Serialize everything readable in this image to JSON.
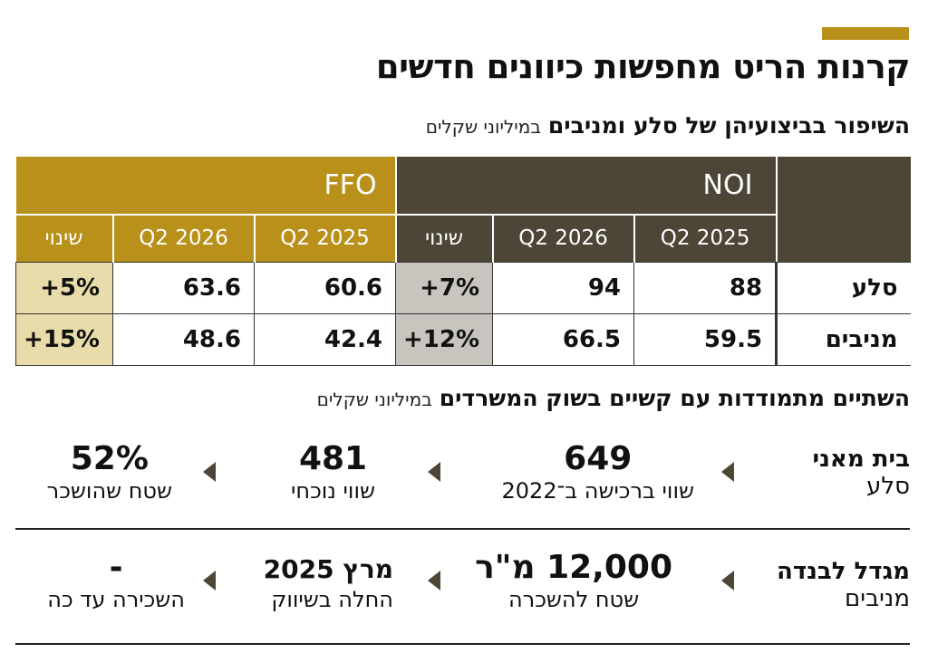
{
  "title": "קרנות הריט מחפשות כיוונים חדשים",
  "subtitle": {
    "bold": "השיפור בביצועיהן של סלע ומניבים",
    "unit": "במיליוני שקלים"
  },
  "table": {
    "groups": {
      "ffo": "FFO",
      "noi": "NOI"
    },
    "columns": {
      "q2_2025": "Q2 2025",
      "q2_2026": "Q2 2026",
      "change": "שינוי"
    },
    "rows": [
      {
        "label": "סלע",
        "noi_2025": "88",
        "noi_2026": "94",
        "noi_change": "+7%",
        "ffo_2025": "60.6",
        "ffo_2026": "63.6",
        "ffo_change": "+5%"
      },
      {
        "label": "מניבים",
        "noi_2025": "59.5",
        "noi_2026": "66.5",
        "noi_change": "+12%",
        "ffo_2025": "42.4",
        "ffo_2026": "48.6",
        "ffo_change": "+15%"
      }
    ]
  },
  "section2": {
    "bold": "השתיים מתמודדות עם קשיים בשוק המשרדים",
    "unit": "במיליוני שקלים"
  },
  "deals": [
    {
      "name": "בית מאני",
      "owner": "סלע",
      "s1_value": "649",
      "s1_label": "שווי ברכישה ב־2022",
      "s2_value": "481",
      "s2_label": "שווי נוכחי",
      "s3_value": "52%",
      "s3_label": "שטח שהושכר"
    },
    {
      "name": "מגדל לבנדה",
      "owner": "מניבים",
      "s1_value": "12,000 מ\"ר",
      "s1_label": "שטח להשכרה",
      "s2_value": "מרץ 2025",
      "s2_label": "החלה בשיווק",
      "s3_value": "-",
      "s3_label": "השכירה עד כה"
    }
  ],
  "colors": {
    "gold": "#b8901a",
    "dark": "#4d4536",
    "ffo_change_bg": "#e8dcaa",
    "noi_change_bg": "#c8c5bf"
  },
  "icons": [
    "arrow-left-icon"
  ]
}
